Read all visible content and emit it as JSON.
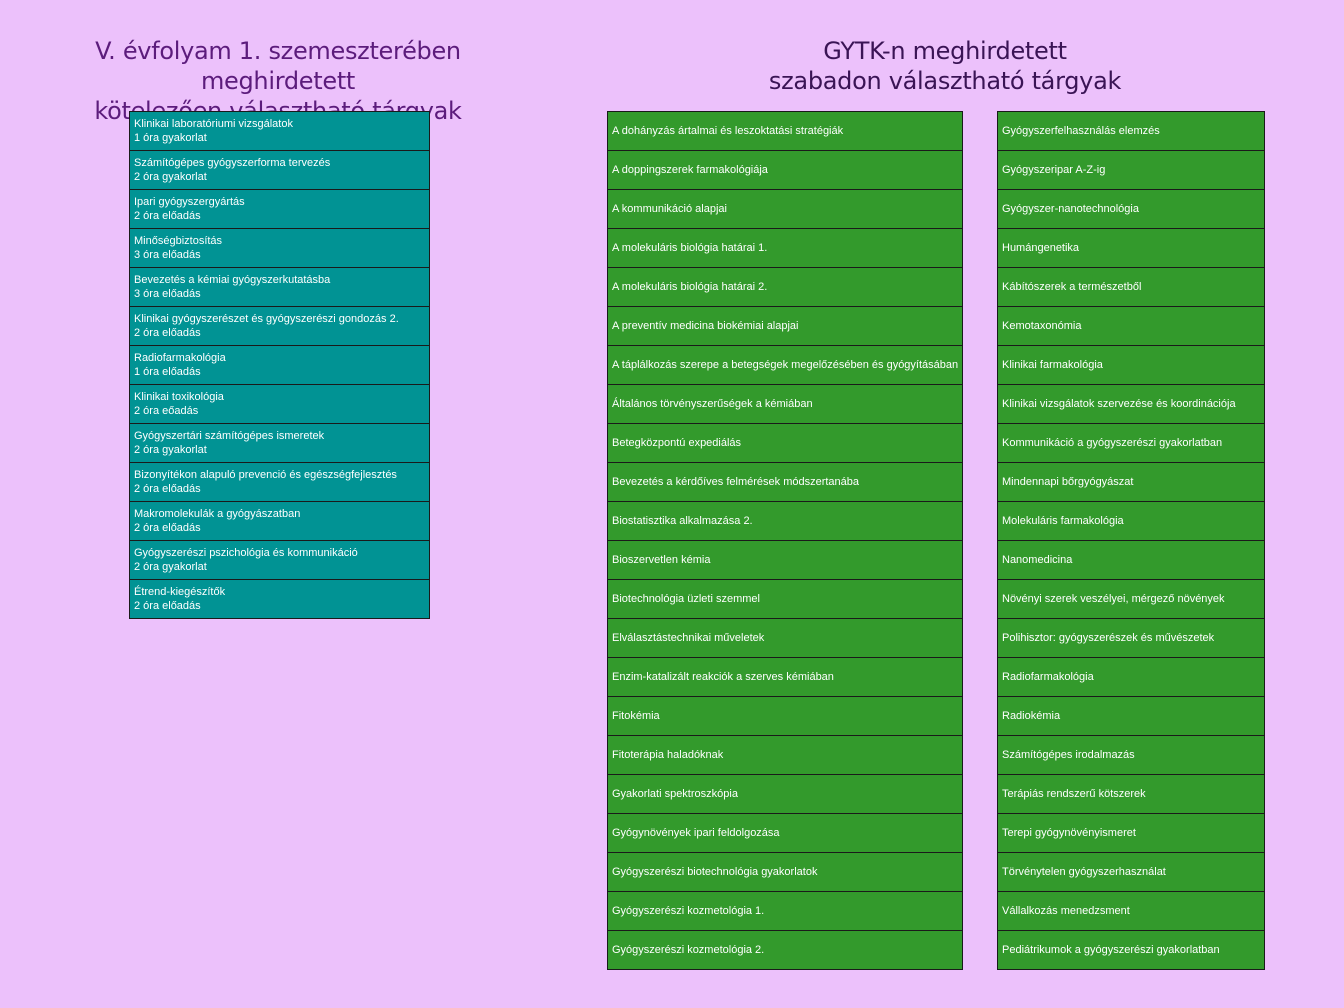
{
  "left_heading": {
    "line1": "V. évfolyam 1. szemeszterében meghirdetett",
    "line2": "kötelezően választható tárgyak"
  },
  "right_heading": {
    "line1": "GYTK-n meghirdetett",
    "line2": "szabadon választható tárgyak"
  },
  "mandatory_courses": [
    {
      "name": "Klinikai laboratóriumi vizsgálatok",
      "detail": "1 óra  gyakorlat"
    },
    {
      "name": "Számítógépes gyógyszerforma tervezés",
      "detail": "2 óra gyakorlat"
    },
    {
      "name": "Ipari gyógyszergyártás",
      "detail": "2 óra előadás"
    },
    {
      "name": "Minőségbiztosítás",
      "detail": "3 óra előadás"
    },
    {
      "name": "Bevezetés a kémiai gyógyszerkutatásba",
      "detail": "3 óra előadás"
    },
    {
      "name": "Klinikai gyógyszerészet és gyógyszerészi gondozás 2.",
      "detail": "2 óra előadás"
    },
    {
      "name": "Radiofarmakológia",
      "detail": "1 óra előadás"
    },
    {
      "name": "Klinikai toxikológia",
      "detail": "2 óra eőadás"
    },
    {
      "name": "Gyógyszertári számítógépes ismeretek",
      "detail": "2 óra gyakorlat"
    },
    {
      "name": "Bizonyítékon alapuló prevenció és egészségfejlesztés",
      "detail": "2 óra előadás"
    },
    {
      "name": "Makromolekulák a gyógyászatban",
      "detail": "2 óra előadás"
    },
    {
      "name": "Gyógyszerészi pszichológia és kommunikáció",
      "detail": "2 óra gyakorlat"
    },
    {
      "name": "Étrend-kiegészítők",
      "detail": "2 óra előadás"
    }
  ],
  "elective_courses_col1": [
    "A dohányzás ártalmai és leszoktatási stratégiák",
    "A doppingszerek farmakológiája",
    "A kommunikáció alapjai",
    "A molekuláris biológia határai 1.",
    "A molekuláris biológia határai 2.",
    "A preventív medicina biokémiai alapjai",
    "A táplálkozás szerepe a betegségek megelőzésében és gyógyításában",
    "Általános törvényszerűségek a kémiában",
    "Betegközpontú expediálás",
    "Bevezetés a kérdőíves felmérések módszertanába",
    "Biostatisztika alkalmazása 2.",
    "Bioszervetlen kémia",
    "Biotechnológia üzleti szemmel",
    "Elválasztástechnikai műveletek",
    "Enzim-katalizált reakciók a szerves kémiában",
    "Fitokémia",
    "Fitoterápia haladóknak",
    "Gyakorlati spektroszkópia",
    "Gyógynövények ipari feldolgozása",
    "Gyógyszerészi biotechnológia gyakorlatok",
    "Gyógyszerészi kozmetológia 1.",
    "Gyógyszerészi kozmetológia 2."
  ],
  "elective_courses_col2": [
    "Gyógyszerfelhasználás elemzés",
    "Gyógyszeripar A-Z-ig",
    "Gyógyszer-nanotechnológia",
    "Humángenetika",
    "Kábítószerek a természetből",
    "Kemotaxonómia",
    "Klinikai farmakológia",
    "Klinikai vizsgálatok szervezése és koordinációja",
    "Kommunikáció a gyógyszerészi gyakorlatban",
    "Mindennapi bőrgyógyászat",
    "Molekuláris farmakológia",
    "Nanomedicina",
    "Növényi szerek veszélyei, mérgező növények",
    "Polihisztor: gyógyszerészek és művészetek",
    "Radiofarmakológia",
    "Radiokémia",
    "Számítógépes  irodalmazás",
    "Terápiás rendszerű kötszerek",
    "Terepi gyógynövényismeret",
    "Törvénytelen  gyógyszerhasználat",
    "Vállalkozás menedzsment",
    "Pediátrikumok a gyógyszerészi gyakorlatban"
  ],
  "colors": {
    "background": "#ecc1fb",
    "left_heading": "#5c1c7c",
    "right_heading": "#3a1455",
    "mandatory_cell": "#019394",
    "elective_cell": "#339a2c"
  }
}
